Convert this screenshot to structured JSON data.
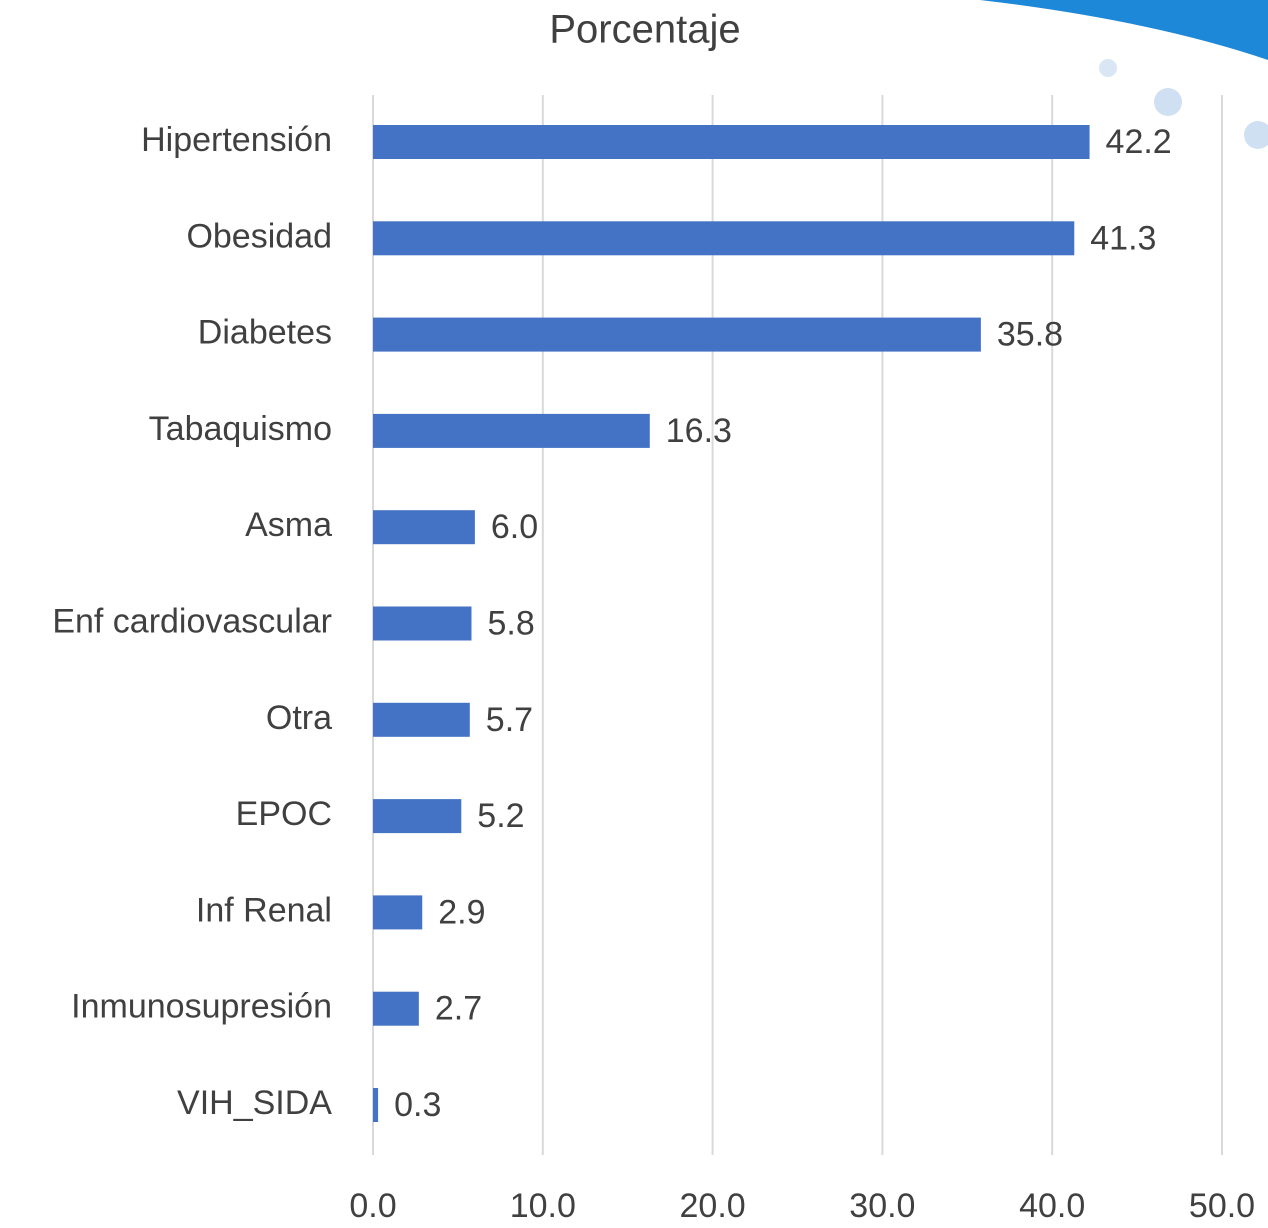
{
  "chart_data": {
    "type": "bar",
    "orientation": "horizontal",
    "title": "Porcentaje",
    "categories": [
      "Hipertensión",
      "Obesidad",
      "Diabetes",
      "Tabaquismo",
      "Asma",
      "Enf cardiovascular",
      "Otra",
      "EPOC",
      "Inf Renal",
      "Inmunosupresión",
      "VIH_SIDA"
    ],
    "values": [
      42.2,
      41.3,
      35.8,
      16.3,
      6.0,
      5.8,
      5.7,
      5.2,
      2.9,
      2.7,
      0.3
    ],
    "value_labels": [
      "42.2",
      "41.3",
      "35.8",
      "16.3",
      "6.0",
      "5.8",
      "5.7",
      "5.2",
      "2.9",
      "2.7",
      "0.3"
    ],
    "color": "#4472c4",
    "xlim": [
      0,
      50
    ],
    "xticks": [
      {
        "value": 0,
        "label": "0.0"
      },
      {
        "value": 10,
        "label": "10.0"
      },
      {
        "value": 20,
        "label": "20.0"
      },
      {
        "value": 30,
        "label": "30.0"
      },
      {
        "value": 40,
        "label": "40.0"
      },
      {
        "value": 50,
        "label": "50.0"
      }
    ],
    "grid": true
  }
}
